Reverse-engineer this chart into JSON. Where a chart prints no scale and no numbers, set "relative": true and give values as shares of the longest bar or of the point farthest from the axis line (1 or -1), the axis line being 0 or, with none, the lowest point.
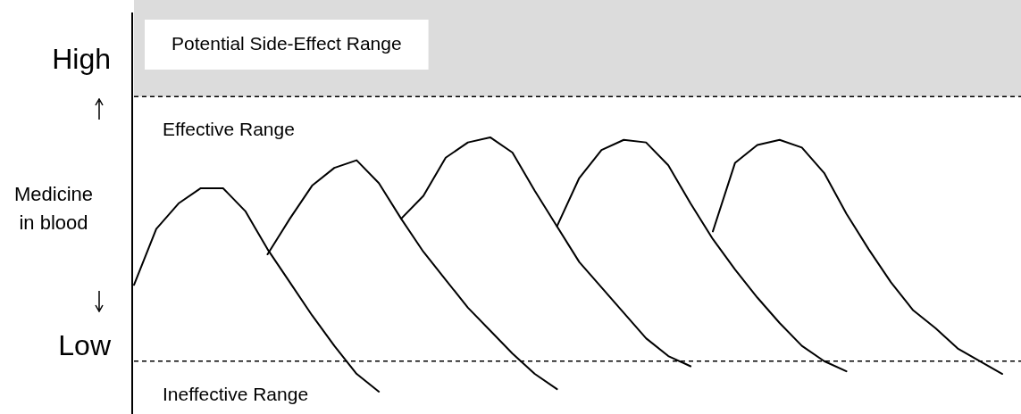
{
  "chart_data": {
    "type": "line",
    "relative": true,
    "ylabel": "Medicine in blood",
    "legend": false,
    "marker": "none",
    "line_style": "solid",
    "categories": [
      null,
      null,
      null,
      null,
      null,
      null,
      null,
      null,
      null,
      null,
      null,
      null,
      null,
      null,
      null,
      null,
      null,
      null,
      null,
      null,
      null,
      null,
      null,
      null,
      null,
      null,
      null,
      null,
      null,
      null,
      null,
      null,
      null,
      null,
      null,
      null,
      null,
      null,
      null,
      null
    ],
    "series": [
      {
        "color": "#000000",
        "values": [
          0.42,
          0.64,
          0.74,
          0.8,
          0.8,
          0.71,
          0.56,
          0.43,
          0.3,
          0.18,
          0.07,
          0,
          null,
          null,
          null,
          null,
          null,
          null,
          null,
          null,
          null,
          null,
          null,
          null,
          null,
          null,
          null,
          null,
          null,
          null,
          null,
          null,
          null,
          null,
          null,
          null,
          null,
          null,
          null,
          null
        ]
      },
      {
        "color": "#000000",
        "values": [
          null,
          null,
          null,
          null,
          null,
          null,
          0.54,
          0.68,
          0.81,
          0.88,
          0.91,
          0.82,
          0.68,
          0.55,
          0.44,
          0.33,
          0.24,
          0.15,
          0.07,
          0.01,
          null,
          null,
          null,
          null,
          null,
          null,
          null,
          null,
          null,
          null,
          null,
          null,
          null,
          null,
          null,
          null,
          null,
          null,
          null,
          null
        ]
      },
      {
        "color": "#000000",
        "values": [
          null,
          null,
          null,
          null,
          null,
          null,
          null,
          null,
          null,
          null,
          null,
          null,
          0.68,
          0.77,
          0.92,
          0.98,
          1,
          0.94,
          0.79,
          0.65,
          0.51,
          0.41,
          0.31,
          0.21,
          0.14,
          0.1,
          null,
          null,
          null,
          null,
          null,
          null,
          null,
          null,
          null,
          null,
          null,
          null,
          null,
          null
        ]
      },
      {
        "color": "#000000",
        "values": [
          null,
          null,
          null,
          null,
          null,
          null,
          null,
          null,
          null,
          null,
          null,
          null,
          null,
          null,
          null,
          null,
          null,
          null,
          null,
          0.65,
          0.84,
          0.95,
          0.99,
          0.98,
          0.89,
          0.74,
          0.6,
          0.48,
          0.37,
          0.27,
          0.18,
          0.12,
          0.08,
          null,
          null,
          null,
          null,
          null,
          null,
          null
        ]
      },
      {
        "color": "#000000",
        "values": [
          null,
          null,
          null,
          null,
          null,
          null,
          null,
          null,
          null,
          null,
          null,
          null,
          null,
          null,
          null,
          null,
          null,
          null,
          null,
          null,
          null,
          null,
          null,
          null,
          null,
          null,
          0.63,
          0.9,
          0.97,
          0.99,
          0.96,
          0.86,
          0.7,
          0.56,
          0.43,
          0.32,
          0.25,
          0.17,
          0.12,
          0.07
        ]
      }
    ],
    "ref_lines": [
      {
        "axis": "y",
        "value": 1.16,
        "label": "High",
        "line_style": "dashed",
        "color": "#000000"
      },
      {
        "axis": "y",
        "value": 0.12,
        "label": "Low",
        "line_style": "dashed",
        "color": "#000000"
      }
    ],
    "bands": [
      {
        "axis": "y",
        "from": 1.16,
        "to": 1.54,
        "label": "Potential Side-Effect Range",
        "color": "#dcdcdc"
      }
    ],
    "annotations": [
      "Effective Range",
      "Ineffective Range"
    ]
  }
}
